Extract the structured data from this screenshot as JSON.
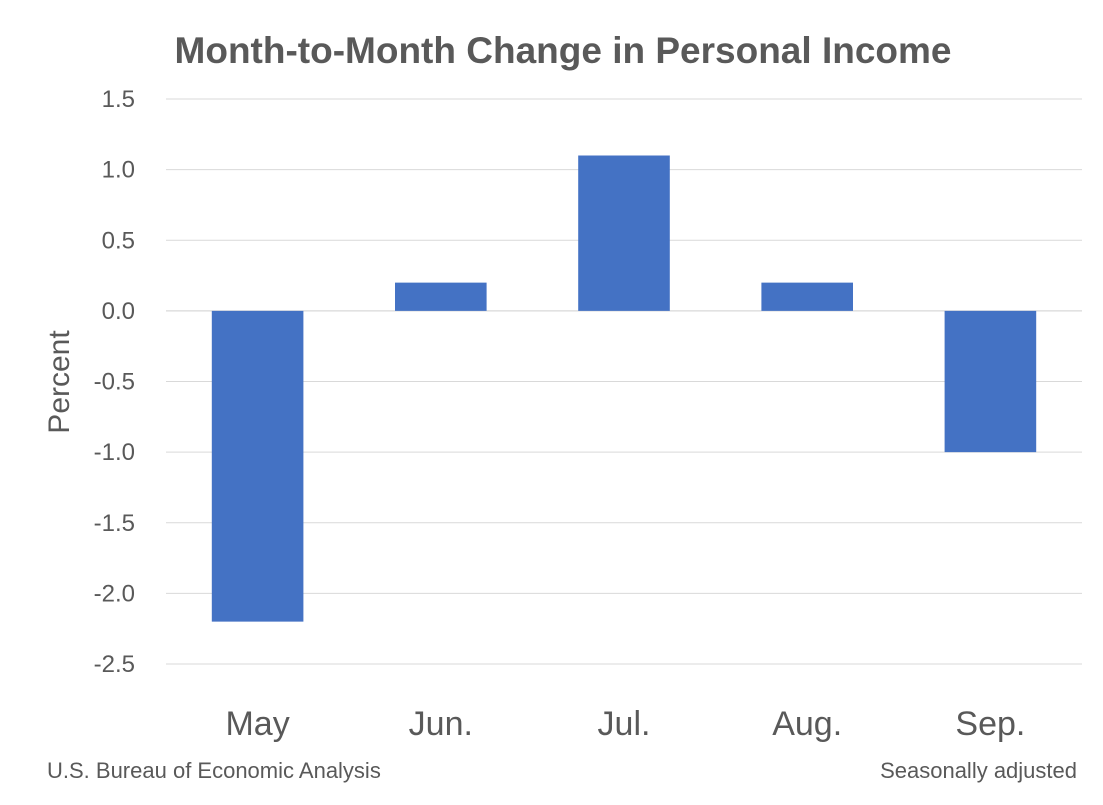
{
  "chart_data": {
    "type": "bar",
    "title": "Month-to-Month Change in Personal Income",
    "ylabel": "Percent",
    "categories": [
      "May",
      "Jun.",
      "Jul.",
      "Aug.",
      "Sep."
    ],
    "values": [
      -2.2,
      0.2,
      1.1,
      0.2,
      -1.0
    ],
    "ylim": [
      -2.5,
      1.5
    ],
    "yticks": [
      "1.5",
      "1.0",
      "0.5",
      "0.0",
      "-0.5",
      "-1.0",
      "-1.5",
      "-2.0",
      "-2.5"
    ],
    "ytick_values": [
      1.5,
      1.0,
      0.5,
      0.0,
      -0.5,
      -1.0,
      -1.5,
      -2.0,
      -2.5
    ],
    "bar_color": "#4472c4",
    "grid": true,
    "legend": "none"
  },
  "footer": {
    "source": "U.S. Bureau of Economic Analysis",
    "note": "Seasonally adjusted"
  }
}
